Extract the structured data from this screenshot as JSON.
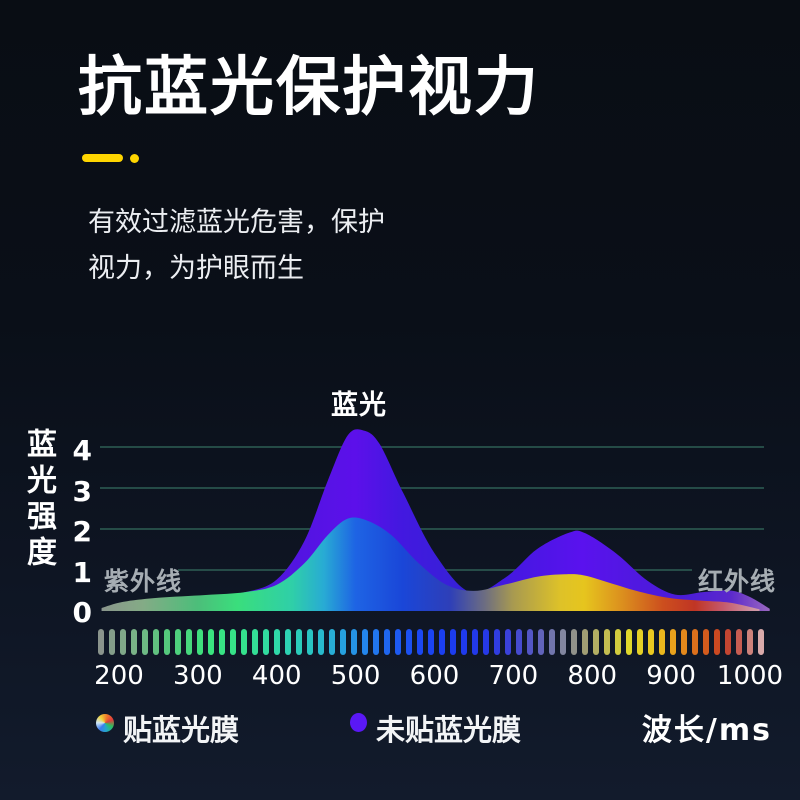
{
  "header": {
    "title": "抗蓝光保护视力",
    "accent_color": "#ffd500",
    "subtitle_line1": "有效过滤蓝光危害，保护",
    "subtitle_line2": "视力，为护眼而生"
  },
  "chart_data": {
    "type": "area",
    "ylabel": "蓝光强度",
    "xlabel": "波长/ms",
    "yticks": [
      "4",
      "3",
      "2",
      "1",
      "0"
    ],
    "xticks": [
      "200",
      "300",
      "400",
      "500",
      "600",
      "700",
      "800",
      "900",
      "1000"
    ],
    "ylim": [
      0,
      4.5
    ],
    "x_range": [
      200,
      1000
    ],
    "grid": true,
    "legend_position": "bottom",
    "annotations": {
      "left": "紫外线",
      "peak": "蓝光",
      "right": "红外线"
    },
    "series": [
      {
        "name": "未贴蓝光膜",
        "color": "#5a18f5",
        "points": [
          [
            178,
            0.03
          ],
          [
            210,
            0.14
          ],
          [
            250,
            0.24
          ],
          [
            310,
            0.33
          ],
          [
            360,
            0.44
          ],
          [
            400,
            0.75
          ],
          [
            435,
            1.7
          ],
          [
            465,
            3.2
          ],
          [
            490,
            4.3
          ],
          [
            510,
            4.42
          ],
          [
            530,
            4.1
          ],
          [
            560,
            2.9
          ],
          [
            600,
            1.4
          ],
          [
            645,
            0.44
          ],
          [
            690,
            0.8
          ],
          [
            730,
            1.5
          ],
          [
            770,
            1.9
          ],
          [
            790,
            1.9
          ],
          [
            830,
            1.4
          ],
          [
            870,
            0.72
          ],
          [
            905,
            0.38
          ],
          [
            940,
            0.44
          ],
          [
            975,
            0.48
          ],
          [
            1000,
            0.32
          ],
          [
            1025,
            0.03
          ]
        ]
      },
      {
        "name": "贴蓝光膜",
        "color": "rainbow-gradient",
        "points": [
          [
            178,
            0.05
          ],
          [
            205,
            0.2
          ],
          [
            250,
            0.3
          ],
          [
            310,
            0.37
          ],
          [
            360,
            0.44
          ],
          [
            400,
            0.62
          ],
          [
            435,
            1.15
          ],
          [
            465,
            1.85
          ],
          [
            490,
            2.25
          ],
          [
            515,
            2.2
          ],
          [
            545,
            1.85
          ],
          [
            580,
            1.15
          ],
          [
            615,
            0.62
          ],
          [
            650,
            0.47
          ],
          [
            690,
            0.63
          ],
          [
            730,
            0.82
          ],
          [
            765,
            0.88
          ],
          [
            790,
            0.85
          ],
          [
            825,
            0.65
          ],
          [
            860,
            0.45
          ],
          [
            900,
            0.29
          ],
          [
            940,
            0.23
          ],
          [
            975,
            0.18
          ],
          [
            1012,
            0.02
          ]
        ]
      }
    ]
  },
  "gradients": {
    "purple": [
      [
        0,
        "#5a4aa8"
      ],
      [
        0.2,
        "#4a1ed2"
      ],
      [
        0.3,
        "#5314e2"
      ],
      [
        0.382,
        "#5c10ea"
      ],
      [
        0.45,
        "#4318e0"
      ],
      [
        0.547,
        "#3522d6"
      ],
      [
        0.62,
        "#4617e2"
      ],
      [
        0.72,
        "#5a12ee"
      ],
      [
        0.8,
        "#5018e0"
      ],
      [
        0.87,
        "#4a1cd8"
      ],
      [
        0.94,
        "#5a28cc"
      ],
      [
        1,
        "#9a68c0"
      ]
    ],
    "rainbow": [
      [
        0,
        "#8a948c"
      ],
      [
        0.065,
        "#84ab86"
      ],
      [
        0.147,
        "#4cbe7a"
      ],
      [
        0.206,
        "#3ade7c"
      ],
      [
        0.288,
        "#2fcfa8"
      ],
      [
        0.335,
        "#28abd4"
      ],
      [
        0.382,
        "#1e64e4"
      ],
      [
        0.453,
        "#1a46d8"
      ],
      [
        0.523,
        "#2e3fb8"
      ],
      [
        0.576,
        "#6e6e80"
      ],
      [
        0.617,
        "#a89a50"
      ],
      [
        0.688,
        "#dec228"
      ],
      [
        0.723,
        "#e6c51e"
      ],
      [
        0.782,
        "#db8d1e"
      ],
      [
        0.841,
        "#cc4e1e"
      ],
      [
        0.888,
        "#c03524"
      ],
      [
        0.929,
        "#c4586a"
      ],
      [
        0.973,
        "#cf93a2"
      ],
      [
        1,
        "#d4a8b2"
      ]
    ]
  },
  "spectrum_bar": {
    "dash_count": 61,
    "stops": [
      [
        0,
        "#8a948c"
      ],
      [
        0.05,
        "#79b287"
      ],
      [
        0.1,
        "#55c87d"
      ],
      [
        0.16,
        "#3be47d"
      ],
      [
        0.22,
        "#34e18e"
      ],
      [
        0.27,
        "#2fd7ab"
      ],
      [
        0.32,
        "#29c4c4"
      ],
      [
        0.36,
        "#27a7dc"
      ],
      [
        0.4,
        "#2385ec"
      ],
      [
        0.44,
        "#1e60f0"
      ],
      [
        0.48,
        "#1b49f2"
      ],
      [
        0.53,
        "#1b3cf0"
      ],
      [
        0.58,
        "#2438e8"
      ],
      [
        0.62,
        "#3c42d8"
      ],
      [
        0.66,
        "#5a5cc0"
      ],
      [
        0.7,
        "#8286a0"
      ],
      [
        0.73,
        "#9c9a78"
      ],
      [
        0.76,
        "#bdb858"
      ],
      [
        0.8,
        "#e0d82c"
      ],
      [
        0.84,
        "#ecc51e"
      ],
      [
        0.87,
        "#e89c1c"
      ],
      [
        0.9,
        "#dc701c"
      ],
      [
        0.93,
        "#cc4a1e"
      ],
      [
        0.955,
        "#c24436"
      ],
      [
        0.98,
        "#cc7a72"
      ],
      [
        1,
        "#d9aaaa"
      ]
    ]
  },
  "legend": [
    {
      "label": "贴蓝光膜",
      "swatch": "rainbow"
    },
    {
      "label": "未贴蓝光膜",
      "swatch_color": "#5a18f5"
    }
  ]
}
